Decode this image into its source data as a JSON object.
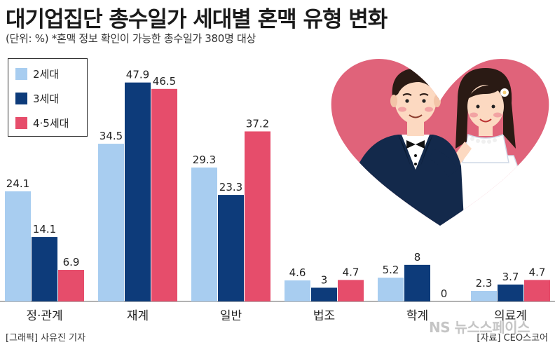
{
  "title": "대기업집단 총수일가 세대별 혼맥 유형 변화",
  "subtitle": "(단위: %) *혼맥 정보 확인이 가능한 총수일가 380명 대상",
  "footer": {
    "credit_left": "[그래픽] 사유진 기자",
    "source_right": "[자료] CEO스코어",
    "watermark": "NS 뉴스스페이스"
  },
  "legend": [
    {
      "label": "2세대",
      "color": "#a8cdf0"
    },
    {
      "label": "3세대",
      "color": "#0d3b7a"
    },
    {
      "label": "4·5세대",
      "color": "#e64d6b"
    }
  ],
  "chart_data": {
    "type": "bar",
    "title": "대기업집단 총수일가 세대별 혼맥 유형 변화",
    "subtitle": "(단위: %) *혼맥 정보 확인이 가능한 총수일가 380명 대상",
    "categories": [
      "정·관계",
      "재계",
      "일반",
      "법조",
      "학계",
      "의료계"
    ],
    "series": [
      {
        "name": "2세대",
        "color": "#a8cdf0",
        "values": [
          24.1,
          34.5,
          29.3,
          4.6,
          5.2,
          2.3
        ]
      },
      {
        "name": "3세대",
        "color": "#0d3b7a",
        "values": [
          14.1,
          47.9,
          23.3,
          3,
          8,
          3.7
        ]
      },
      {
        "name": "4·5세대",
        "color": "#e64d6b",
        "values": [
          6.9,
          46.5,
          37.2,
          4.7,
          0,
          4.7
        ]
      }
    ],
    "data_labels": [
      [
        "24.1",
        "14.1",
        "6.9"
      ],
      [
        "34.5",
        "47.9",
        "46.5"
      ],
      [
        "29.3",
        "23.3",
        "37.2"
      ],
      [
        "4.6",
        "3",
        "4.7"
      ],
      [
        "5.2",
        "8",
        "0"
      ],
      [
        "2.3",
        "3.7",
        "4.7"
      ]
    ],
    "xlabel": "",
    "ylabel": "",
    "ylim": [
      0,
      50
    ],
    "grid": false,
    "legend_position": "top-left"
  }
}
